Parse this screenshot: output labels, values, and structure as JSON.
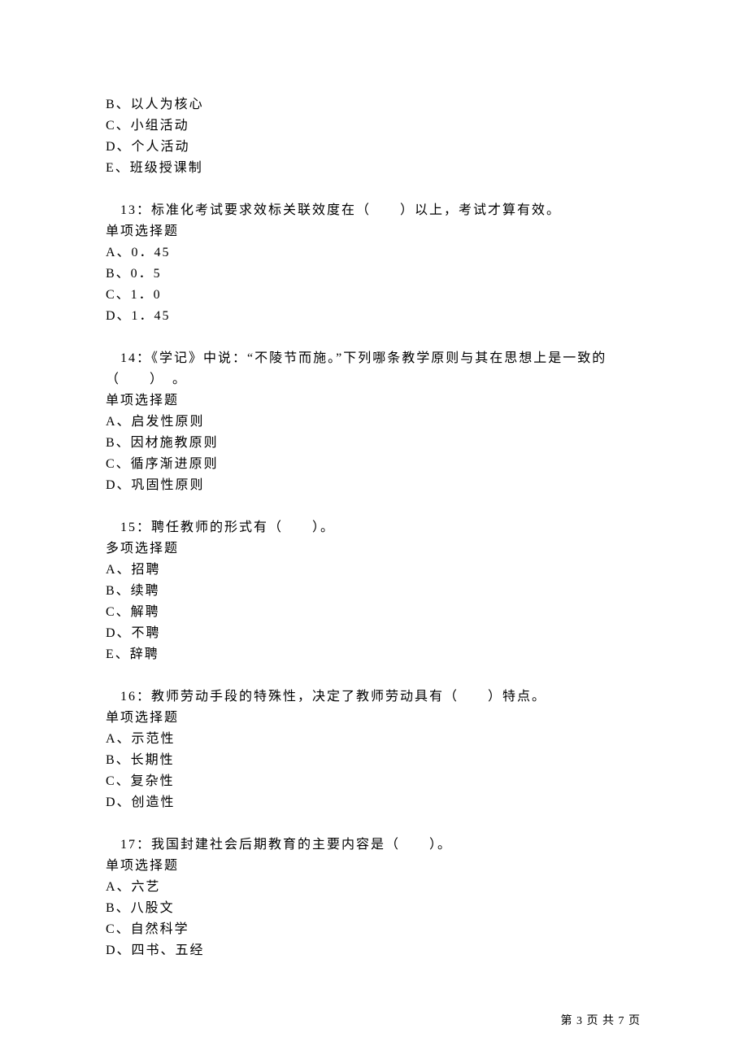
{
  "options_q12": {
    "b": "B、以人为核心",
    "c": "C、小组活动",
    "d": "D、个人活动",
    "e": "E、班级授课制"
  },
  "q13": {
    "text": "　13：标准化考试要求效标关联效度在（　　）以上，考试才算有效。",
    "type": "单项选择题",
    "options": {
      "a": "A、0．45",
      "b": "B、0．5",
      "c": "C、1．0",
      "d": "D、1．45"
    }
  },
  "q14": {
    "text_line1": "　14：《学记》中说：“不陵节而施。”下列哪条教学原则与其在思想上是一致的",
    "text_line2": "（　　）　。",
    "type": "单项选择题",
    "options": {
      "a": "A、启发性原则",
      "b": "B、因材施教原则",
      "c": "C、循序渐进原则",
      "d": "D、巩固性原则"
    }
  },
  "q15": {
    "text": "　15：聘任教师的形式有（　　）。",
    "type": "多项选择题",
    "options": {
      "a": "A、招聘",
      "b": "B、续聘",
      "c": "C、解聘",
      "d": "D、不聘",
      "e": "E、辞聘"
    }
  },
  "q16": {
    "text": "　16：教师劳动手段的特殊性，决定了教师劳动具有（　　）特点。",
    "type": "单项选择题",
    "options": {
      "a": "A、示范性",
      "b": "B、长期性",
      "c": "C、复杂性",
      "d": "D、创造性"
    }
  },
  "q17": {
    "text": "　17：我国封建社会后期教育的主要内容是（　　）。",
    "type": "单项选择题",
    "options": {
      "a": "A、六艺",
      "b": "B、八股文",
      "c": "C、自然科学",
      "d": "D、四书、五经"
    }
  },
  "footer": "第 3 页 共 7 页"
}
